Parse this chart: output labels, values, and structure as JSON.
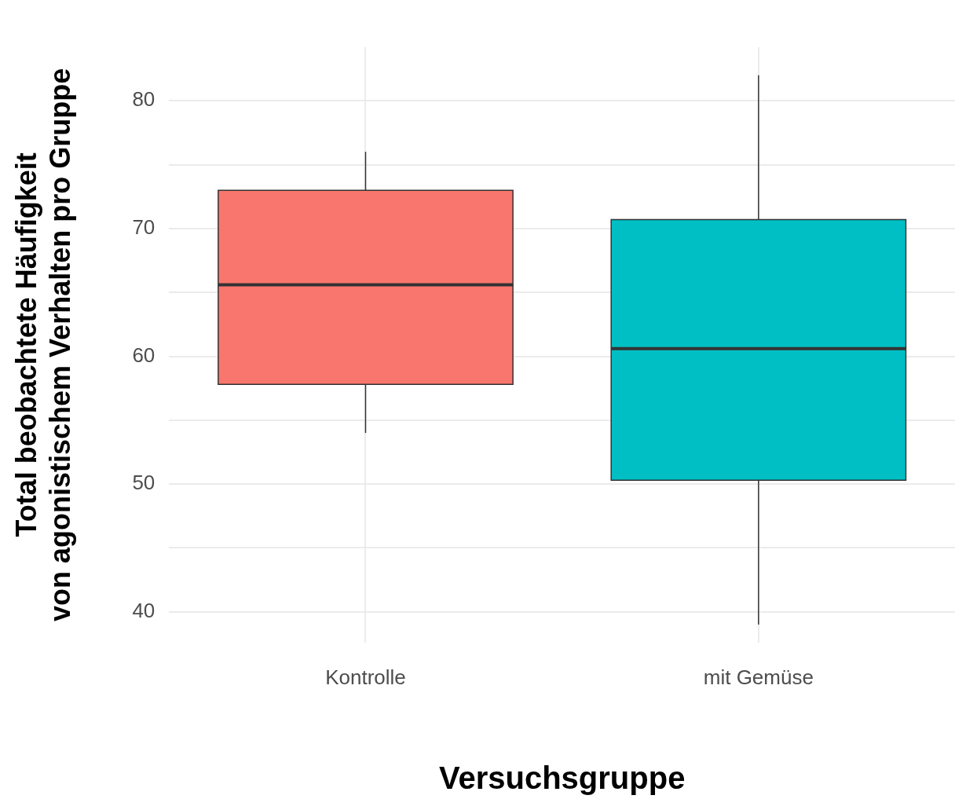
{
  "chart_data": {
    "type": "box",
    "xlabel": "Versuchsgruppe",
    "ylabel": "Total beobachtete Häufigkeit\nvon agonistischem Verhalten pro Gruppe",
    "categories": [
      "Kontrolle",
      "mit Gemüse"
    ],
    "boxes": [
      {
        "low": 54,
        "q1": 57.8,
        "median": 65.6,
        "q3": 73,
        "high": 76
      },
      {
        "low": 39,
        "q1": 50.3,
        "median": 60.6,
        "q3": 70.7,
        "high": 82
      }
    ],
    "colors": [
      "#f8766d",
      "#00bfc4"
    ],
    "ylim": [
      37.6,
      84.2
    ],
    "yticks": [
      40,
      {
        "value": 45,
        "label": null
      },
      50,
      {
        "value": 55,
        "label": null
      },
      60,
      {
        "value": 65,
        "label": null
      },
      70,
      {
        "value": 75,
        "label": null
      },
      80
    ],
    "grid": true
  }
}
